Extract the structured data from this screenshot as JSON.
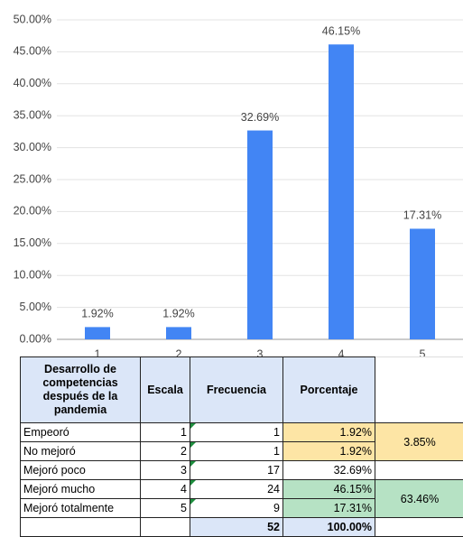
{
  "chart_data": {
    "type": "bar",
    "categories": [
      "1",
      "2",
      "3",
      "4",
      "5"
    ],
    "values": [
      1.92,
      1.92,
      32.69,
      46.15,
      17.31
    ],
    "value_labels": [
      "1.92%",
      "1.92%",
      "32.69%",
      "46.15%",
      "17.31%"
    ],
    "color": "#4285f4",
    "ylim": [
      0,
      50
    ],
    "yticks": [
      {
        "value": 0,
        "label": "0.00%"
      },
      {
        "value": 5,
        "label": "5.00%"
      },
      {
        "value": 10,
        "label": "10.00%"
      },
      {
        "value": 15,
        "label": "15.00%"
      },
      {
        "value": 20,
        "label": "20.00%"
      },
      {
        "value": 25,
        "label": "25.00%"
      },
      {
        "value": 30,
        "label": "30.00%"
      },
      {
        "value": 35,
        "label": "35.00%"
      },
      {
        "value": 40,
        "label": "40.00%"
      },
      {
        "value": 45,
        "label": "45.00%"
      },
      {
        "value": 50,
        "label": "50.00%"
      }
    ],
    "grid": true
  },
  "table": {
    "header": [
      "Desarrollo de competencias después de la pandemia",
      "Escala",
      "Frecuencia",
      "Porcentaje"
    ],
    "rows": [
      [
        "Empeoró",
        "1",
        "1",
        "1.92%"
      ],
      [
        "No mejoró",
        "2",
        "1",
        "1.92%"
      ],
      [
        "Mejoró poco",
        "3",
        "17",
        "32.69%"
      ],
      [
        "Mejoró mucho",
        "4",
        "24",
        "46.15%"
      ],
      [
        "Mejoró totalmente",
        "5",
        "9",
        "17.31%"
      ]
    ],
    "merged": [
      "3.85%",
      "63.46%"
    ],
    "total": [
      "52",
      "100.00%"
    ]
  }
}
